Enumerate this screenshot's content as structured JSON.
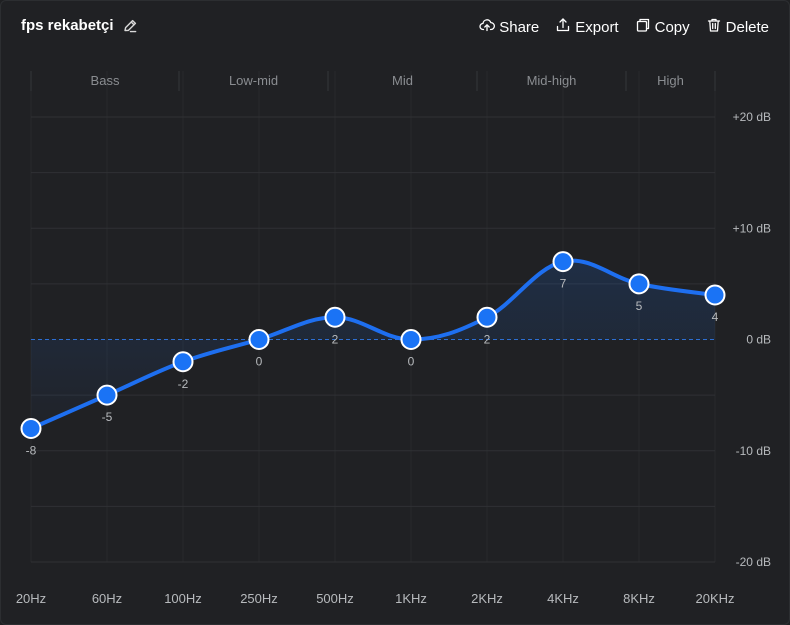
{
  "header": {
    "title": "fps rekabetçi",
    "actions": [
      {
        "label": "Share",
        "icon": "cloud-upload-icon"
      },
      {
        "label": "Export",
        "icon": "export-icon"
      },
      {
        "label": "Copy",
        "icon": "copy-icon"
      },
      {
        "label": "Delete",
        "icon": "trash-icon"
      }
    ]
  },
  "bands": [
    "Bass",
    "Low-mid",
    "Mid",
    "Mid-high",
    "High"
  ],
  "db_labels": [
    "+20 dB",
    "+10 dB",
    "0 dB",
    "-10 dB",
    "-20 dB"
  ],
  "colors": {
    "accent": "#1a73f5",
    "line": "#1e6ff0",
    "grid": "#2f3134",
    "zero_line": "#2e6fd1",
    "text_dim": "#8a8d91",
    "text_mid": "#b7babd"
  },
  "chart_data": {
    "type": "line",
    "x": [
      "20Hz",
      "60Hz",
      "100Hz",
      "250Hz",
      "500Hz",
      "1KHz",
      "2KHz",
      "4KHz",
      "8KHz",
      "20KHz"
    ],
    "values": [
      -8,
      -5,
      -2,
      0,
      2,
      0,
      2,
      7,
      5,
      4
    ],
    "ylim": [
      -20,
      20
    ],
    "yticks": [
      20,
      10,
      0,
      -10,
      -20
    ],
    "grid": true
  }
}
